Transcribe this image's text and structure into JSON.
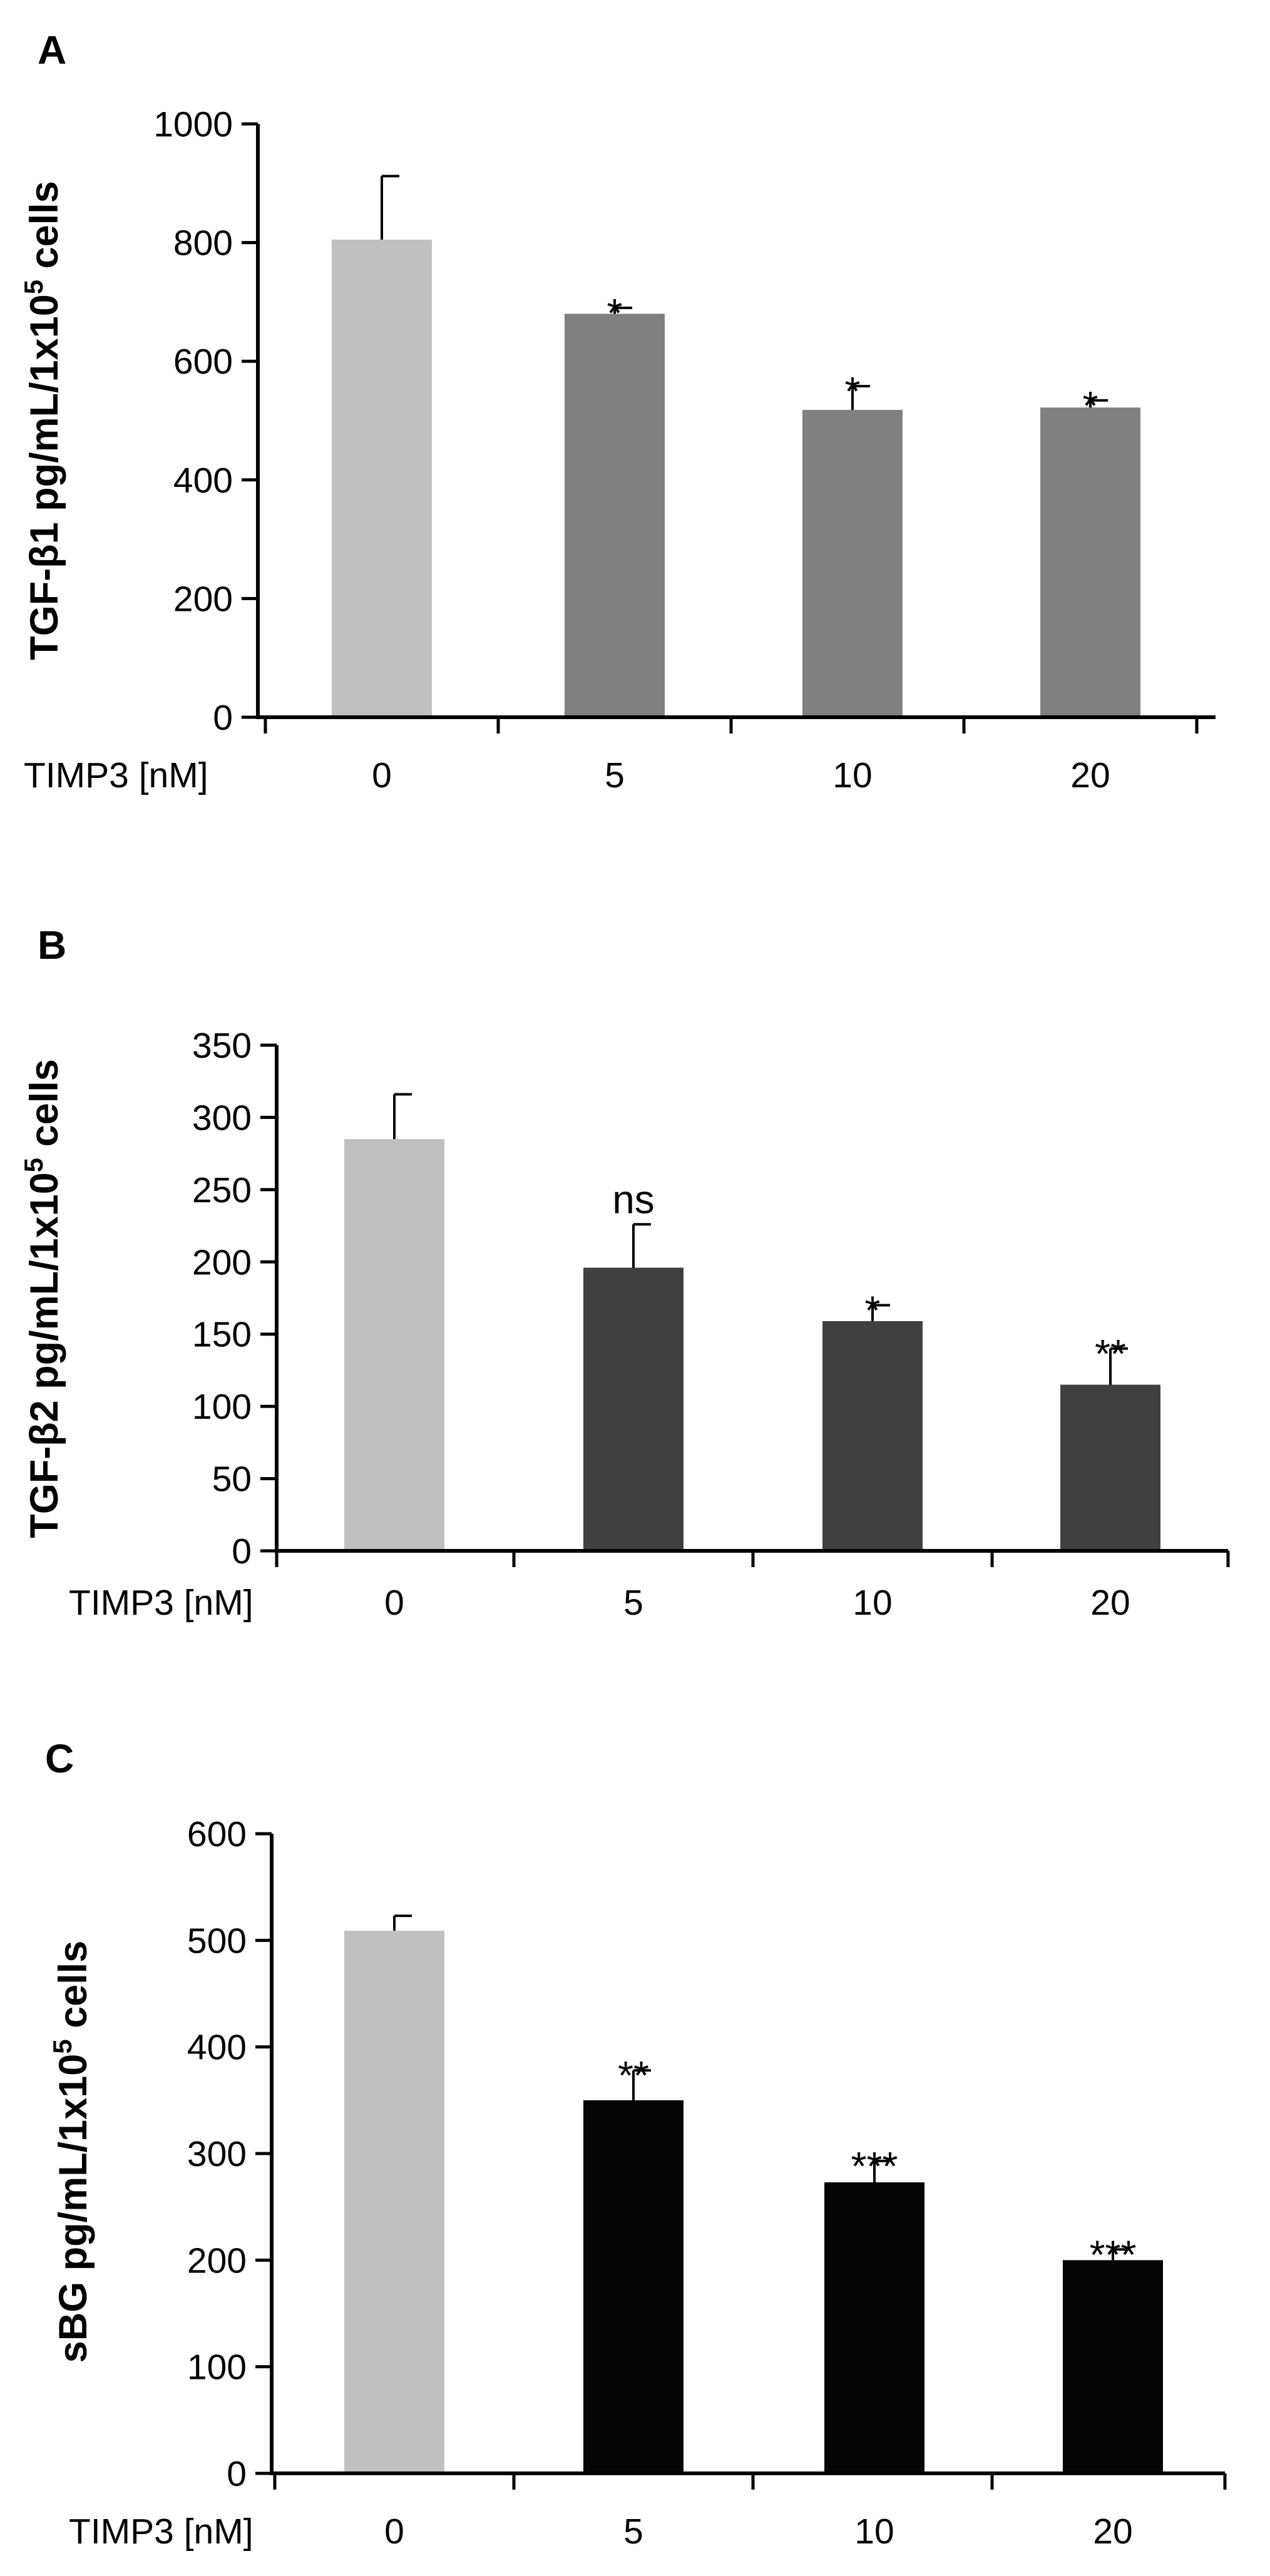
{
  "chart_data": [
    {
      "type": "bar",
      "panel": "A",
      "xlabel": "TIMP3 [nM]",
      "ylabel": "TGF-β1 pg/mL/1x10",
      "ylabel_sup": "5",
      "ylabel_suffix": " cells",
      "categories": [
        "0",
        "5",
        "10",
        "20"
      ],
      "values": [
        805,
        680,
        518,
        522
      ],
      "errors": [
        107,
        10,
        40,
        12
      ],
      "significance": [
        "",
        "*",
        "*",
        "*"
      ],
      "bar_colors": [
        "#c0c0c0",
        "#808080",
        "#808080",
        "#808080"
      ],
      "ylim": [
        0,
        1000
      ],
      "yticks": [
        "0",
        "200",
        "400",
        "600",
        "800",
        "1000"
      ],
      "ytick_values": [
        0,
        200,
        400,
        600,
        800,
        1000
      ]
    },
    {
      "type": "bar",
      "panel": "B",
      "xlabel": "TIMP3 [nM]",
      "ylabel": "TGF-β2 pg/mL/1x10",
      "ylabel_sup": "5",
      "ylabel_suffix": " cells",
      "categories": [
        "0",
        "5",
        "10",
        "20"
      ],
      "values": [
        285,
        196,
        159,
        115
      ],
      "errors": [
        31,
        30,
        11,
        25
      ],
      "significance": [
        "",
        "ns",
        "*",
        "**"
      ],
      "bar_colors": [
        "#c0c0c0",
        "#404040",
        "#404040",
        "#404040"
      ],
      "ylim": [
        0,
        350
      ],
      "yticks": [
        "0",
        "50",
        "100",
        "150",
        "200",
        "250",
        "300",
        "350"
      ],
      "ytick_values": [
        0,
        50,
        100,
        150,
        200,
        250,
        300,
        350
      ]
    },
    {
      "type": "bar",
      "panel": "C",
      "xlabel": "TIMP3 [nM]",
      "ylabel": "sBG pg/mL/1x10",
      "ylabel_sup": "5",
      "ylabel_suffix": " cells",
      "categories": [
        "0",
        "5",
        "10",
        "20"
      ],
      "values": [
        509,
        350,
        273,
        200
      ],
      "errors": [
        14,
        28,
        20,
        10
      ],
      "significance": [
        "",
        "**",
        "***",
        "***"
      ],
      "bar_colors": [
        "#c0c0c0",
        "#050505",
        "#050505",
        "#050505"
      ],
      "ylim": [
        0,
        600
      ],
      "yticks": [
        "0",
        "100",
        "200",
        "300",
        "400",
        "500",
        "600"
      ],
      "ytick_values": [
        0,
        100,
        200,
        300,
        400,
        500,
        600
      ]
    }
  ]
}
